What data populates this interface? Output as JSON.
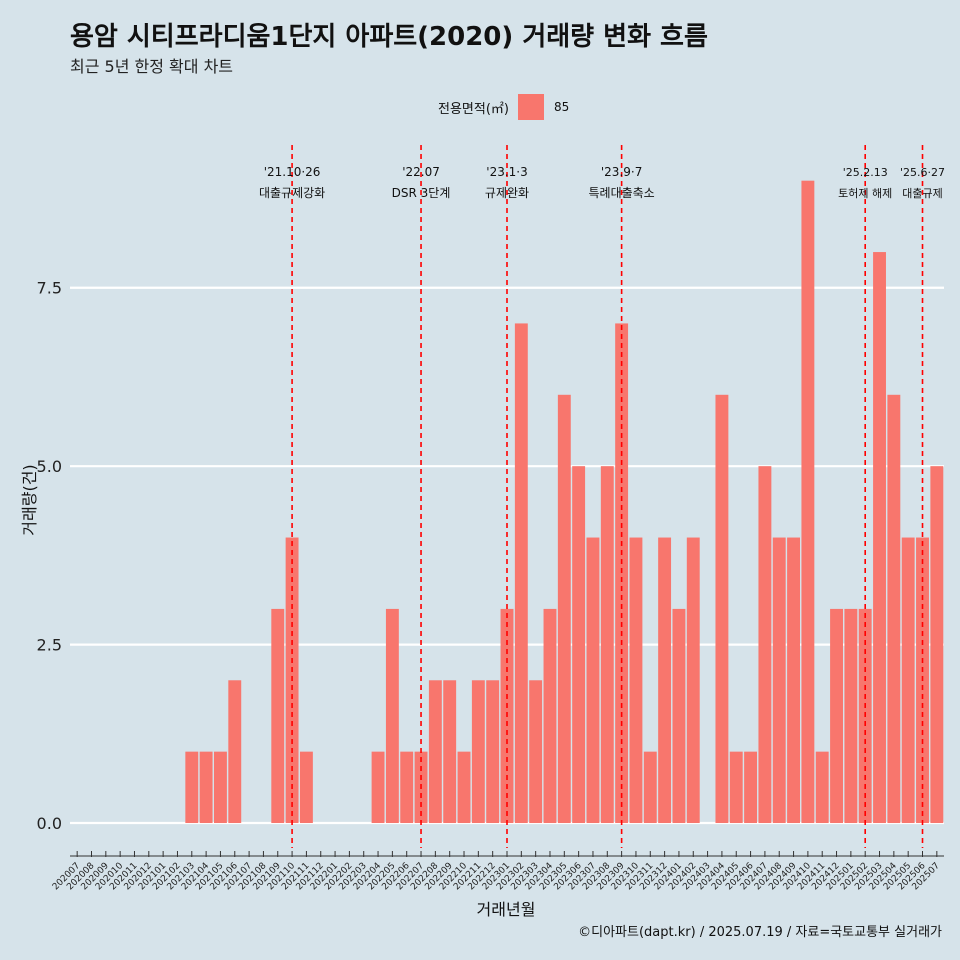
{
  "header": {
    "title": "용암 시티프라디움1단지 아파트(2020) 거래량 변화 흐름",
    "subtitle": "최근 5년 한정 확대 차트"
  },
  "legend": {
    "title": "전용면적(㎡)",
    "items": [
      "85"
    ]
  },
  "caption": "©디아파트(dapt.kr) / 2025.07.19 / 자료=국토교통부 실거래가",
  "colors": {
    "bar": "#f8766d",
    "background": "#d6e3ea",
    "grid": "#ffffff",
    "event_line": "#ff0000"
  },
  "chart_data": {
    "type": "bar",
    "title": "용암 시티프라디움1단지 아파트(2020) 거래량 변화 흐름",
    "subtitle": "최근 5년 한정 확대 차트",
    "xlabel": "거래년월",
    "ylabel": "거래량(건)",
    "ylim": [
      -0.35,
      9.5
    ],
    "yticks": [
      "0.0",
      "2.5",
      "5.0",
      "7.5"
    ],
    "ytick_values": [
      0,
      2.5,
      5,
      7.5
    ],
    "grid": true,
    "legend_position": "top",
    "categories": [
      "202007",
      "202008",
      "202009",
      "202010",
      "202011",
      "202012",
      "202101",
      "202102",
      "202103",
      "202104",
      "202105",
      "202106",
      "202107",
      "202108",
      "202109",
      "202110",
      "202111",
      "202112",
      "202201",
      "202202",
      "202203",
      "202204",
      "202205",
      "202206",
      "202207",
      "202208",
      "202209",
      "202210",
      "202211",
      "202212",
      "202301",
      "202302",
      "202303",
      "202304",
      "202305",
      "202306",
      "202307",
      "202308",
      "202309",
      "202310",
      "202311",
      "202312",
      "202401",
      "202402",
      "202403",
      "202404",
      "202405",
      "202406",
      "202407",
      "202408",
      "202409",
      "202410",
      "202411",
      "202412",
      "202501",
      "202502",
      "202503",
      "202504",
      "202505",
      "202506",
      "202507"
    ],
    "series": [
      {
        "name": "85",
        "values": [
          0,
          0,
          0,
          0,
          0,
          0,
          0,
          0,
          1,
          1,
          1,
          2,
          0,
          0,
          3,
          4,
          1,
          0,
          0,
          0,
          0,
          1,
          3,
          1,
          1,
          2,
          2,
          1,
          2,
          2,
          3,
          7,
          2,
          3,
          6,
          5,
          4,
          5,
          7,
          4,
          1,
          4,
          3,
          4,
          0,
          6,
          1,
          1,
          5,
          4,
          4,
          9,
          1,
          3,
          3,
          3,
          8,
          6,
          4,
          4,
          5
        ]
      }
    ],
    "events": [
      {
        "x": "202110",
        "date": "'21.10·26",
        "label": "대출규제강화"
      },
      {
        "x": "202207",
        "date": "'22.07",
        "label": "DSR 3단계"
      },
      {
        "x": "202301",
        "date": "'23.1·3",
        "label": "규제완화"
      },
      {
        "x": "202309",
        "date": "'23.9·7",
        "label": "특례대출축소"
      },
      {
        "x": "202502",
        "date": "'25.2.13",
        "label": "토허제 해제"
      },
      {
        "x": "202506",
        "date": "'25.6·27",
        "label": "대출규제"
      }
    ]
  }
}
